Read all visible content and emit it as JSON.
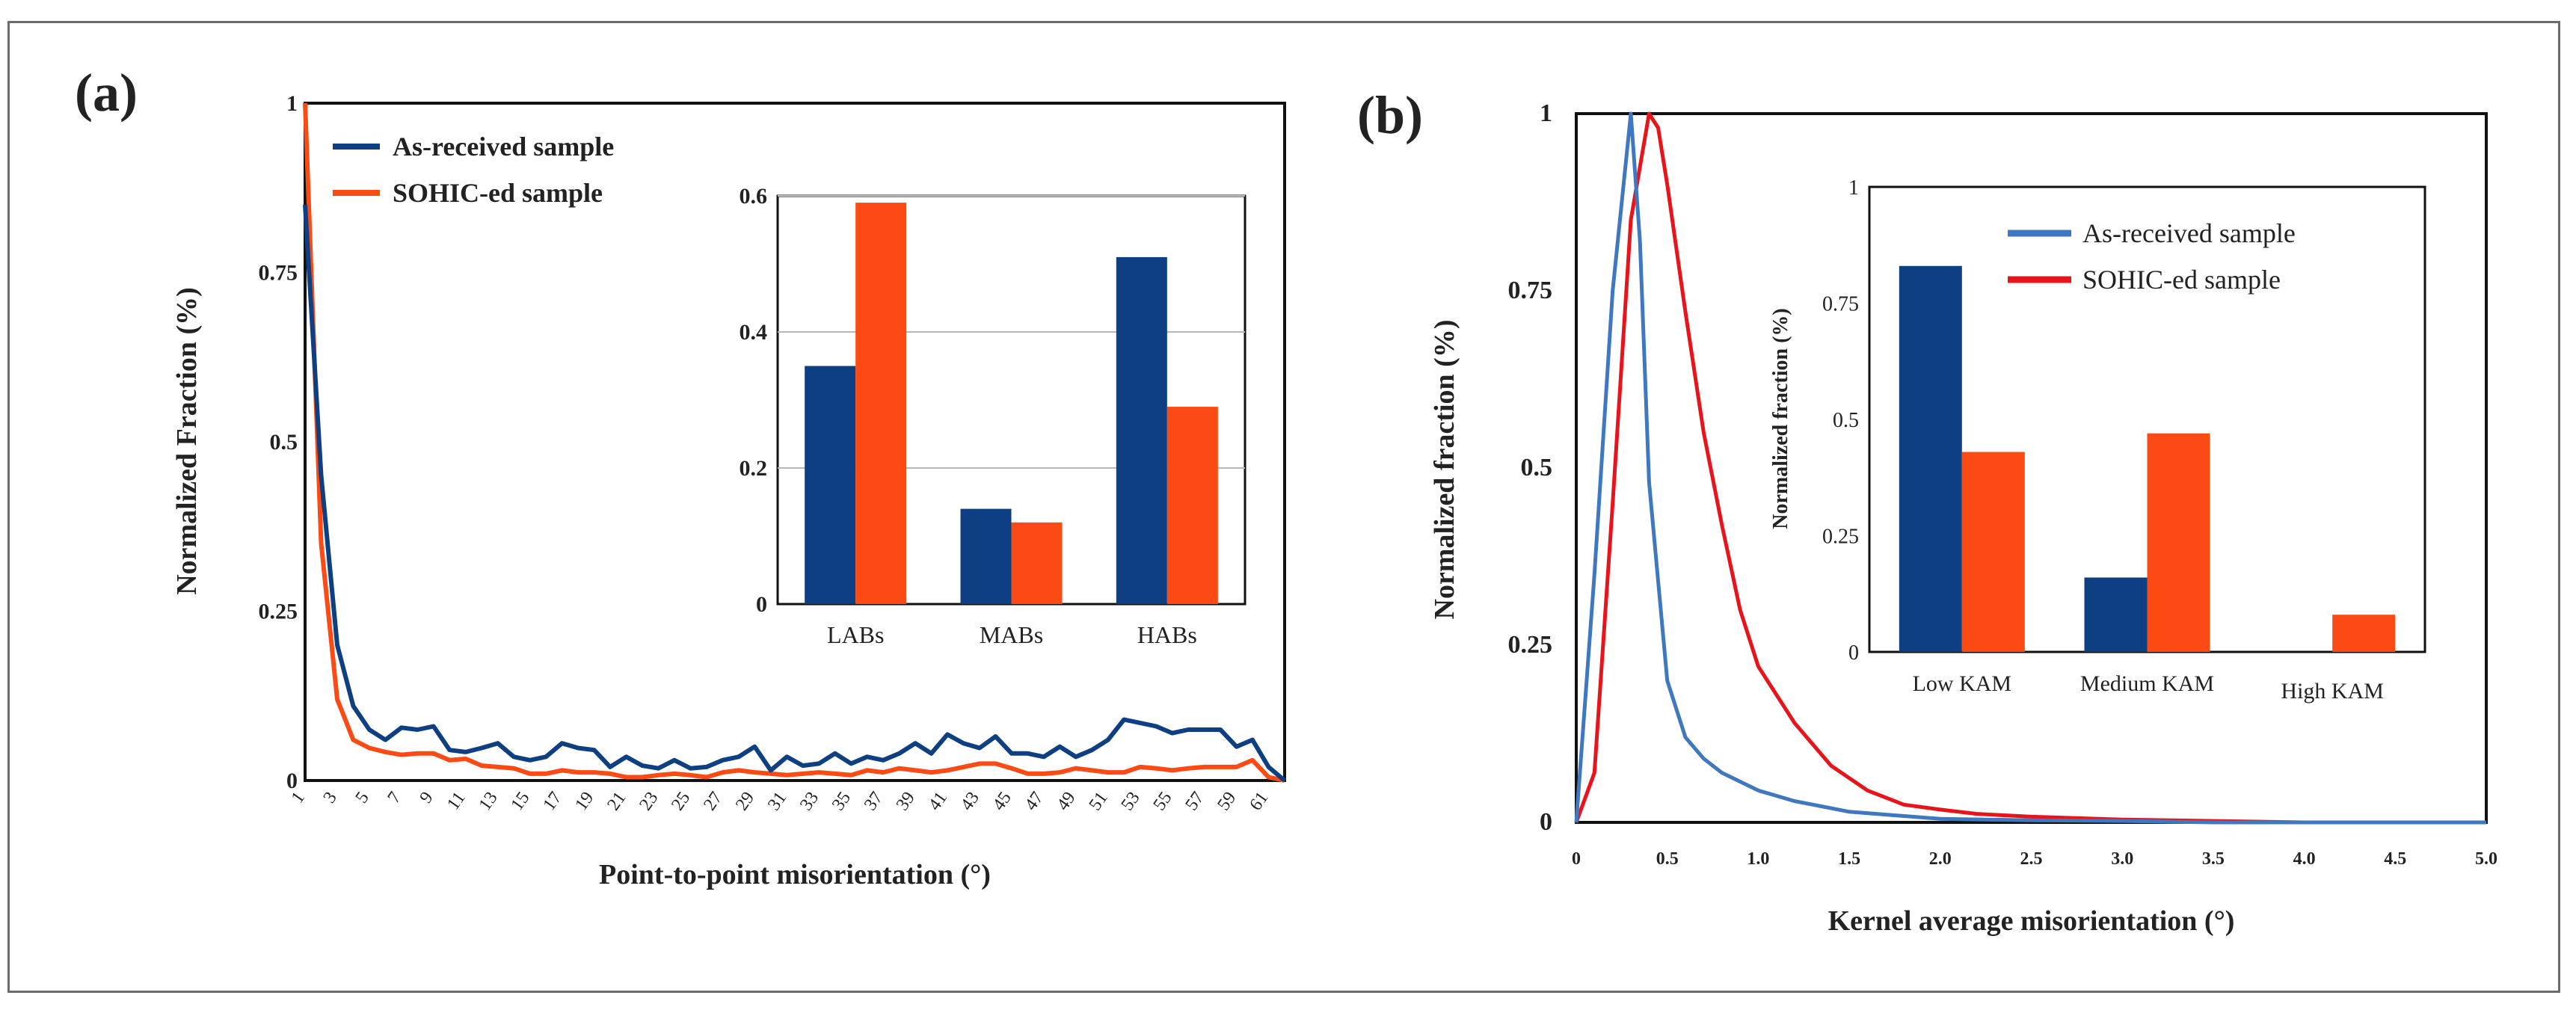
{
  "figure": {
    "panel_a_label": "(a)",
    "panel_b_label": "(b)"
  },
  "colors": {
    "as_received_a": "#0f3f83",
    "sohic_a": "#fc4a14",
    "as_received_b_line": "#3f78c0",
    "sohic_b_line": "#e8141c",
    "as_received_b_bar": "#0f3f83",
    "sohic_b_bar": "#fc4a14",
    "text": "#222222"
  },
  "chart_data": [
    {
      "id": "panel-a-main",
      "type": "line",
      "xlabel": "Point-to-point misorientation (°)",
      "ylabel": "Normalized Fraction (%)",
      "xlim": [
        1,
        62
      ],
      "ylim": [
        0,
        1
      ],
      "y_ticks": [
        "0",
        "0.25",
        "0.5",
        "0.75",
        "1"
      ],
      "y_tick_values": [
        0,
        0.25,
        0.5,
        0.75,
        1
      ],
      "x_ticks": [
        1,
        3,
        5,
        7,
        9,
        11,
        13,
        15,
        17,
        19,
        21,
        23,
        25,
        27,
        29,
        31,
        33,
        35,
        37,
        39,
        41,
        43,
        45,
        47,
        49,
        51,
        53,
        55,
        57,
        59,
        61
      ],
      "legend": [
        "As-received sample",
        "SOHIC-ed sample"
      ],
      "legend_position": "top-left",
      "x": [
        1,
        2,
        3,
        4,
        5,
        6,
        7,
        8,
        9,
        10,
        11,
        12,
        13,
        14,
        15,
        16,
        17,
        18,
        19,
        20,
        21,
        22,
        23,
        24,
        25,
        26,
        27,
        28,
        29,
        30,
        31,
        32,
        33,
        34,
        35,
        36,
        37,
        38,
        39,
        40,
        41,
        42,
        43,
        44,
        45,
        46,
        47,
        48,
        49,
        50,
        51,
        52,
        53,
        54,
        55,
        56,
        57,
        58,
        59,
        60,
        61,
        62
      ],
      "series": [
        {
          "name": "As-received sample",
          "values": [
            0.85,
            0.45,
            0.2,
            0.11,
            0.075,
            0.06,
            0.078,
            0.075,
            0.08,
            0.045,
            0.042,
            0.048,
            0.055,
            0.035,
            0.03,
            0.035,
            0.055,
            0.048,
            0.045,
            0.02,
            0.035,
            0.022,
            0.018,
            0.03,
            0.018,
            0.02,
            0.03,
            0.035,
            0.05,
            0.015,
            0.035,
            0.022,
            0.025,
            0.04,
            0.025,
            0.035,
            0.03,
            0.04,
            0.055,
            0.04,
            0.068,
            0.055,
            0.048,
            0.065,
            0.04,
            0.04,
            0.035,
            0.05,
            0.035,
            0.045,
            0.06,
            0.09,
            0.085,
            0.08,
            0.07,
            0.075,
            0.075,
            0.075,
            0.05,
            0.06,
            0.02,
            0.0
          ]
        },
        {
          "name": "SOHIC-ed sample",
          "values": [
            1.0,
            0.35,
            0.12,
            0.06,
            0.048,
            0.042,
            0.038,
            0.04,
            0.04,
            0.03,
            0.032,
            0.022,
            0.02,
            0.018,
            0.01,
            0.01,
            0.015,
            0.012,
            0.012,
            0.01,
            0.005,
            0.005,
            0.008,
            0.01,
            0.008,
            0.005,
            0.012,
            0.015,
            0.012,
            0.01,
            0.008,
            0.01,
            0.012,
            0.01,
            0.008,
            0.015,
            0.012,
            0.018,
            0.015,
            0.012,
            0.015,
            0.02,
            0.025,
            0.025,
            0.018,
            0.01,
            0.01,
            0.012,
            0.018,
            0.015,
            0.012,
            0.012,
            0.02,
            0.018,
            0.015,
            0.018,
            0.02,
            0.02,
            0.02,
            0.03,
            0.005,
            0.0
          ]
        }
      ]
    },
    {
      "id": "panel-a-inset",
      "type": "bar",
      "categories": [
        "LABs",
        "MABs",
        "HABs"
      ],
      "ylim": [
        0,
        0.6
      ],
      "y_ticks": [
        "0",
        "0.2",
        "0.4",
        "0.6"
      ],
      "y_tick_values": [
        0,
        0.2,
        0.4,
        0.6
      ],
      "grid": true,
      "series": [
        {
          "name": "As-received sample",
          "values": [
            0.35,
            0.14,
            0.51
          ]
        },
        {
          "name": "SOHIC-ed sample",
          "values": [
            0.59,
            0.12,
            0.29
          ]
        }
      ]
    },
    {
      "id": "panel-b-main",
      "type": "line",
      "xlabel": "Kernel average misorientation (°)",
      "ylabel": "Normalized fraction (%)",
      "xlim": [
        0,
        5
      ],
      "ylim": [
        0,
        1
      ],
      "y_ticks": [
        "0",
        "0.25",
        "0.5",
        "0.75",
        "1"
      ],
      "y_tick_values": [
        0,
        0.25,
        0.5,
        0.75,
        1
      ],
      "x_ticks": [
        "0",
        "0.5",
        "1.0",
        "1.5",
        "2.0",
        "2.5",
        "3.0",
        "3.5",
        "4.0",
        "4.5",
        "5.0"
      ],
      "x_tick_values": [
        0,
        0.5,
        1,
        1.5,
        2,
        2.5,
        3,
        3.5,
        4,
        4.5,
        5
      ],
      "series": [
        {
          "name": "As-received sample",
          "x": [
            0,
            0.1,
            0.2,
            0.3,
            0.35,
            0.4,
            0.5,
            0.6,
            0.7,
            0.8,
            1.0,
            1.2,
            1.5,
            2.0,
            2.5,
            3.0,
            3.5,
            5.0
          ],
          "values": [
            0.0,
            0.35,
            0.75,
            1.0,
            0.82,
            0.48,
            0.2,
            0.12,
            0.09,
            0.07,
            0.045,
            0.03,
            0.015,
            0.005,
            0.003,
            0.002,
            0.0,
            0.0
          ]
        },
        {
          "name": "SOHIC-ed sample",
          "x": [
            0,
            0.1,
            0.2,
            0.3,
            0.4,
            0.45,
            0.5,
            0.6,
            0.7,
            0.8,
            0.9,
            1.0,
            1.2,
            1.4,
            1.6,
            1.8,
            2.0,
            2.2,
            2.5,
            3.0,
            3.5,
            4.0,
            5.0
          ],
          "values": [
            0.0,
            0.07,
            0.45,
            0.85,
            1.0,
            0.98,
            0.9,
            0.72,
            0.55,
            0.42,
            0.3,
            0.22,
            0.14,
            0.08,
            0.045,
            0.025,
            0.018,
            0.012,
            0.008,
            0.004,
            0.002,
            0.0,
            0.0
          ]
        }
      ]
    },
    {
      "id": "panel-b-inset",
      "type": "bar",
      "categories": [
        "Low KAM",
        "Medium KAM",
        "High KAM"
      ],
      "ylabel": "Normalized fraction (%)",
      "ylim": [
        0,
        1
      ],
      "y_ticks": [
        "0",
        "0.25",
        "0.5",
        "0.75",
        "1"
      ],
      "y_tick_values": [
        0,
        0.25,
        0.5,
        0.75,
        1
      ],
      "legend": [
        "As-received sample",
        "SOHIC-ed sample"
      ],
      "legend_position": "top-right",
      "series": [
        {
          "name": "As-received sample",
          "values": [
            0.83,
            0.16,
            0.0
          ]
        },
        {
          "name": "SOHIC-ed sample",
          "values": [
            0.43,
            0.47,
            0.08
          ]
        }
      ]
    }
  ]
}
